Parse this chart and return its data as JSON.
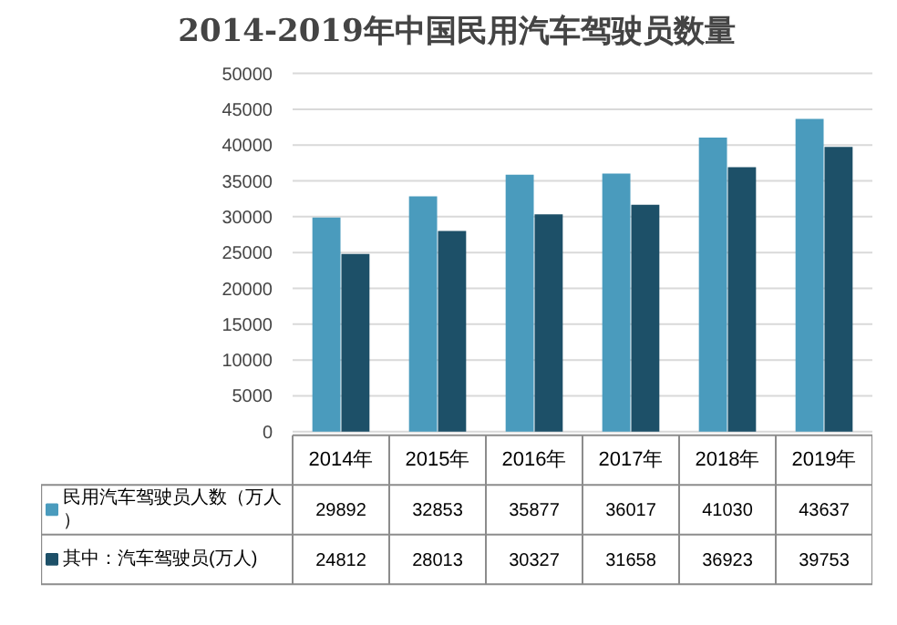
{
  "chart_data": {
    "type": "bar",
    "title": "2014-2019年中国民用汽车驾驶员数量",
    "categories": [
      "2014年",
      "2015年",
      "2016年",
      "2017年",
      "2018年",
      "2019年"
    ],
    "series": [
      {
        "name": "民用汽车驾驶员人数（万人）",
        "color": "#4a9bbd",
        "values": [
          29892,
          32853,
          35877,
          36017,
          41030,
          43637
        ]
      },
      {
        "name": "其中：汽车驾驶员(万人)",
        "color": "#1d5068",
        "values": [
          24812,
          28013,
          30327,
          31658,
          36923,
          39753
        ]
      }
    ],
    "ylim": [
      0,
      50000
    ],
    "yticks": [
      0,
      5000,
      10000,
      15000,
      20000,
      25000,
      30000,
      35000,
      40000,
      45000,
      50000
    ],
    "grid": "y",
    "legend": "bottom",
    "data_labels": true
  }
}
